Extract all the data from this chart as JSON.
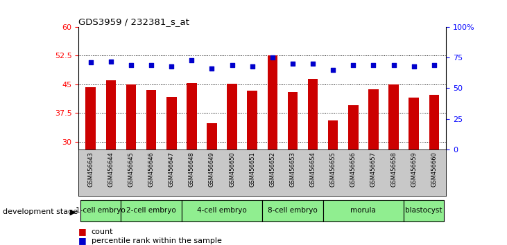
{
  "title": "GDS3959 / 232381_s_at",
  "samples": [
    "GSM456643",
    "GSM456644",
    "GSM456645",
    "GSM456646",
    "GSM456647",
    "GSM456648",
    "GSM456649",
    "GSM456650",
    "GSM456651",
    "GSM456652",
    "GSM456653",
    "GSM456654",
    "GSM456655",
    "GSM456656",
    "GSM456657",
    "GSM456658",
    "GSM456659",
    "GSM456660"
  ],
  "bar_values": [
    44.2,
    46.0,
    45.0,
    43.6,
    41.8,
    45.3,
    34.8,
    45.2,
    43.3,
    52.5,
    43.0,
    46.4,
    35.5,
    39.5,
    43.8,
    45.0,
    41.5,
    42.2
  ],
  "dot_values": [
    71,
    72,
    69,
    69,
    68,
    73,
    66,
    69,
    68,
    75,
    70,
    70,
    65,
    69,
    69,
    69,
    68,
    69
  ],
  "bar_color": "#cc0000",
  "dot_color": "#0000cc",
  "ylim_left": [
    28,
    60
  ],
  "ylim_right": [
    0,
    100
  ],
  "yticks_left": [
    30,
    37.5,
    45,
    52.5,
    60
  ],
  "yticks_right": [
    0,
    25,
    50,
    75,
    100
  ],
  "ytick_labels_left": [
    "30",
    "37.5",
    "45",
    "52.5",
    "60"
  ],
  "ytick_labels_right": [
    "0",
    "25",
    "50",
    "75",
    "100%"
  ],
  "groups": [
    {
      "label": "1-cell embryo",
      "start": 0,
      "end": 2
    },
    {
      "label": "2-cell embryo",
      "start": 2,
      "end": 5
    },
    {
      "label": "4-cell embryo",
      "start": 5,
      "end": 9
    },
    {
      "label": "8-cell embryo",
      "start": 9,
      "end": 12
    },
    {
      "label": "morula",
      "start": 12,
      "end": 16
    },
    {
      "label": "blastocyst",
      "start": 16,
      "end": 18
    }
  ],
  "group_color": "#90ee90",
  "development_stage_label": "development stage",
  "legend_count": "count",
  "legend_percentile": "percentile rank within the sample",
  "bg_color_samples": "#c8c8c8"
}
